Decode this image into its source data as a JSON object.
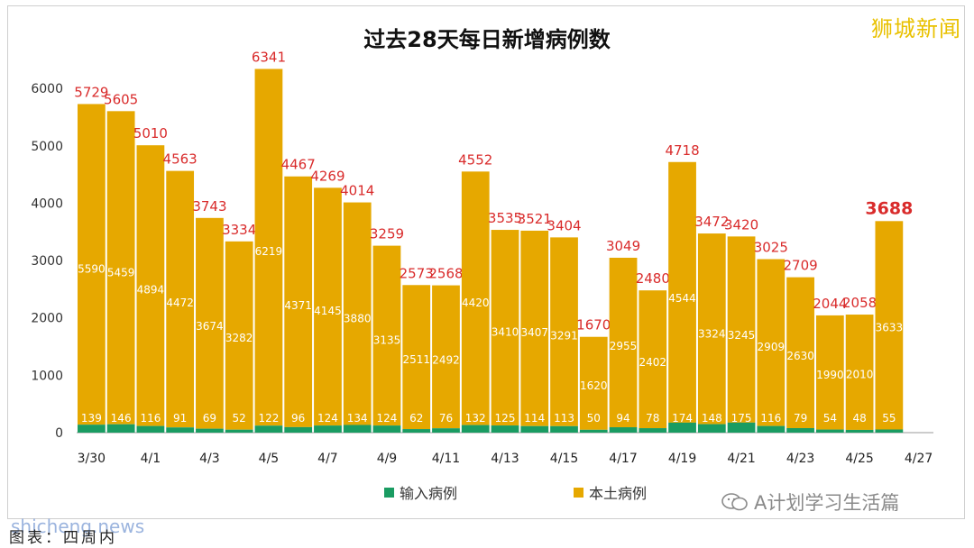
{
  "watermark": "狮城新闻",
  "wechat_account": "A计划学习生活篇",
  "source_credit": "图表：四周内",
  "site_watermark": "shicheng.news",
  "colors": {
    "imported": "#1a9c62",
    "local": "#e6a800",
    "total_label": "#d92b2b"
  },
  "chart_data": {
    "type": "bar",
    "stacked": true,
    "title": "过去28天每日新增病例数",
    "categories": [
      "3/30",
      "3/31",
      "4/1",
      "4/2",
      "4/3",
      "4/4",
      "4/5",
      "4/6",
      "4/7",
      "4/8",
      "4/9",
      "4/10",
      "4/11",
      "4/12",
      "4/13",
      "4/14",
      "4/15",
      "4/16",
      "4/17",
      "4/18",
      "4/19",
      "4/20",
      "4/21",
      "4/22",
      "4/23",
      "4/24",
      "4/25",
      "4/26",
      "4/27"
    ],
    "x_tick_labels": [
      "3/30",
      "4/1",
      "4/3",
      "4/5",
      "4/7",
      "4/9",
      "4/11",
      "4/13",
      "4/15",
      "4/17",
      "4/19",
      "4/21",
      "4/23",
      "4/25",
      "4/27"
    ],
    "series": [
      {
        "name": "输入病例",
        "values": [
          139,
          146,
          116,
          91,
          69,
          52,
          122,
          96,
          124,
          134,
          124,
          62,
          76,
          132,
          125,
          114,
          113,
          50,
          94,
          78,
          174,
          148,
          175,
          116,
          79,
          54,
          48,
          55,
          null
        ]
      },
      {
        "name": "本土病例",
        "values": [
          5590,
          5459,
          4894,
          4472,
          3674,
          3282,
          6219,
          4371,
          4145,
          3880,
          3135,
          2511,
          2492,
          4420,
          3410,
          3407,
          3291,
          1620,
          2955,
          2402,
          4544,
          3324,
          3245,
          2909,
          2630,
          1990,
          2010,
          3633,
          null
        ]
      }
    ],
    "totals": [
      5729,
      5605,
      5010,
      4563,
      3743,
      3334,
      6341,
      4467,
      4269,
      4014,
      3259,
      2573,
      2568,
      4552,
      3535,
      3521,
      3404,
      1670,
      3049,
      2480,
      4718,
      3472,
      3420,
      3025,
      2709,
      2044,
      2058,
      3688,
      null
    ],
    "y_ticks": [
      0,
      1000,
      2000,
      3000,
      4000,
      5000,
      6000
    ],
    "ylim": [
      0,
      6600
    ],
    "legend": "bottom-center",
    "grid": false
  }
}
